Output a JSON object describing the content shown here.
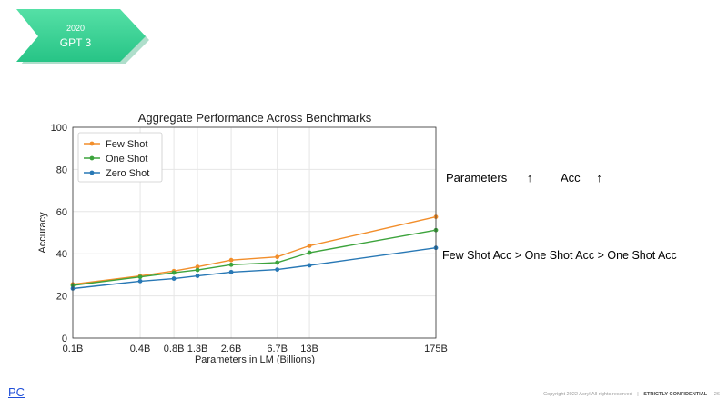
{
  "badge": {
    "year": "2020",
    "title": "GPT 3",
    "color": "#2ecc8f"
  },
  "annotations": {
    "params_label": "Parameters",
    "acc_label": "Acc",
    "arrow": "↑",
    "comparison": "Few Shot Acc > One Shot Acc > One Shot Acc"
  },
  "footer": {
    "pc_link": "PC",
    "copyright": "Copyright 2022 Acryl All rights reserved",
    "separator": "|",
    "confidential": "STRICTLY CONFIDENTIAL",
    "page": "26"
  },
  "chart_data": {
    "type": "line",
    "title": "Aggregate Performance Across Benchmarks",
    "xlabel": "Parameters in LM (Billions)",
    "ylabel": "Accuracy",
    "ylim": [
      0,
      100
    ],
    "yticks": [
      0,
      20,
      40,
      60,
      80,
      100
    ],
    "x": [
      0.1,
      0.4,
      0.8,
      1.3,
      2.6,
      6.7,
      13,
      175
    ],
    "xtick_labels": [
      "0.1B",
      "0.4B",
      "0.8B",
      "1.3B",
      "2.6B",
      "6.7B",
      "13B",
      "175B"
    ],
    "grid": true,
    "legend_position": "top-left",
    "series": [
      {
        "name": "Few Shot",
        "color": "#f28e2b",
        "values": [
          25.5,
          29.5,
          31.8,
          33.8,
          37.0,
          38.5,
          43.8,
          57.5
        ]
      },
      {
        "name": "One Shot",
        "color": "#3ca33c",
        "values": [
          25.0,
          29.0,
          31.0,
          32.3,
          34.8,
          35.8,
          40.5,
          51.2
        ]
      },
      {
        "name": "Zero Shot",
        "color": "#2878b5",
        "values": [
          23.5,
          27.0,
          28.2,
          29.5,
          31.3,
          32.5,
          34.5,
          42.8
        ]
      }
    ]
  }
}
